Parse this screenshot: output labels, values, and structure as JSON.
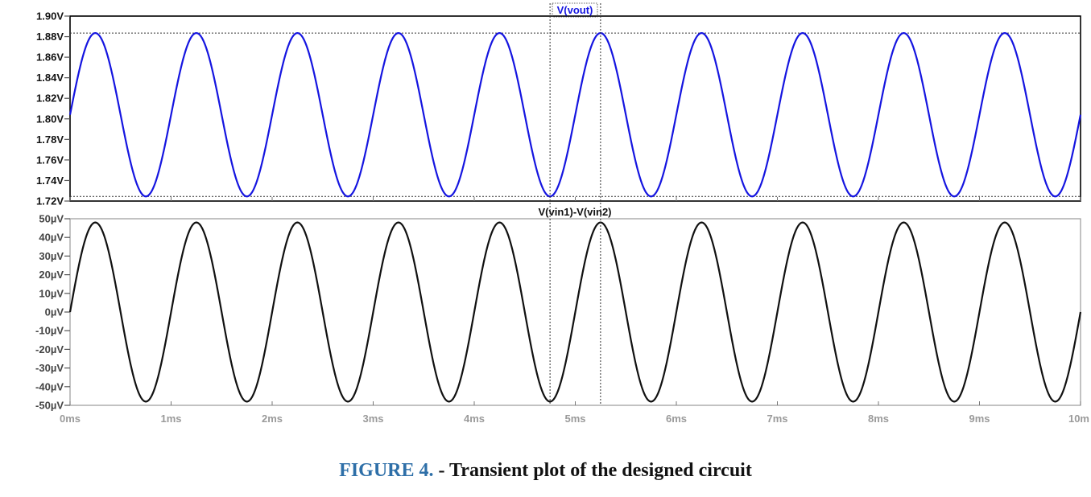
{
  "chart_data": [
    {
      "type": "line",
      "title": "V(vout)",
      "x_unit": "ms",
      "x_range": [
        0,
        10
      ],
      "ylim": [
        1.72,
        1.9
      ],
      "yticks": [
        "1.90V",
        "1.88V",
        "1.86V",
        "1.84V",
        "1.82V",
        "1.80V",
        "1.78V",
        "1.76V",
        "1.74V",
        "1.72V"
      ],
      "ytick_values": [
        1.9,
        1.88,
        1.86,
        1.84,
        1.82,
        1.8,
        1.78,
        1.76,
        1.74,
        1.72
      ],
      "waveform": "sine",
      "offset": 1.804,
      "amplitude": 0.0795,
      "frequency_khz": 1,
      "phase": "in phase with input",
      "reference_lines_y": [
        1.8835,
        1.7245
      ],
      "series": [
        {
          "color": "#1515e0"
        }
      ]
    },
    {
      "type": "line",
      "title": "V(vin1)-V(vin2)",
      "x_unit": "ms",
      "x_range": [
        0,
        10
      ],
      "ylim": [
        -50,
        50
      ],
      "y_unit": "µV",
      "yticks": [
        "50µV",
        "40µV",
        "30µV",
        "20µV",
        "10µV",
        "0µV",
        "-10µV",
        "-20µV",
        "-30µV",
        "-40µV",
        "-50µV"
      ],
      "ytick_values": [
        50,
        40,
        30,
        20,
        10,
        0,
        -10,
        -20,
        -30,
        -40,
        -50
      ],
      "waveform": "sine",
      "offset": 0,
      "amplitude": 48,
      "frequency_khz": 1,
      "series": [
        {
          "color": "#111111"
        }
      ]
    }
  ],
  "x_axis": {
    "ticks": [
      "0ms",
      "1ms",
      "2ms",
      "3ms",
      "4ms",
      "5ms",
      "6ms",
      "7ms",
      "8ms",
      "9ms",
      "10m"
    ],
    "tick_values": [
      0,
      1,
      2,
      3,
      4,
      5,
      6,
      7,
      8,
      9,
      10
    ]
  },
  "cursors_ms": [
    4.75,
    5.25
  ],
  "caption": {
    "figure_number": "FIGURE 4.",
    "text": " - Transient plot of the designed circuit"
  }
}
